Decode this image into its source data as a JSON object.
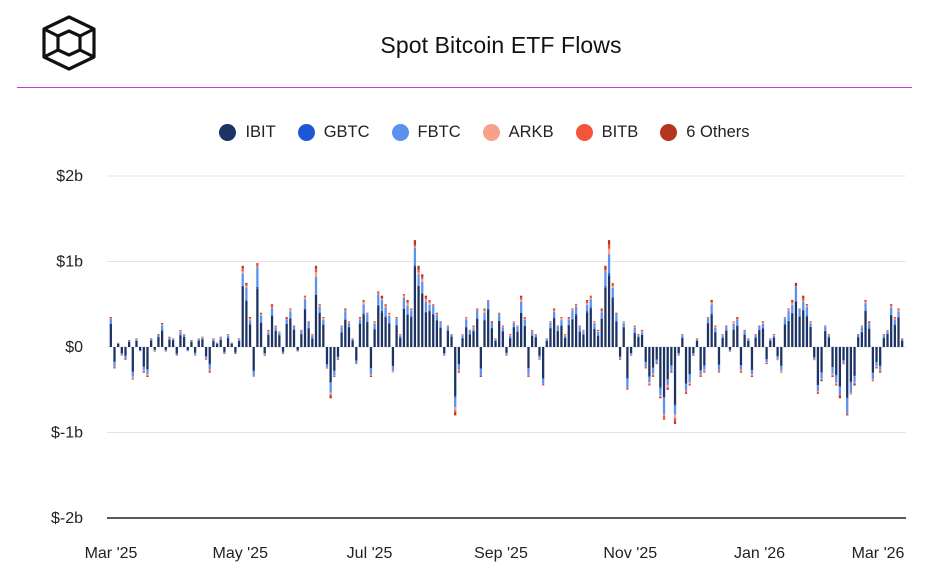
{
  "header": {
    "title": "Spot Bitcoin ETF Flows",
    "logo_icon": "cube-logo-icon",
    "accent_color": "#c13be0"
  },
  "legend": {
    "items": [
      {
        "label": "IBIT",
        "color": "#1c3363"
      },
      {
        "label": "GBTC",
        "color": "#1f56d6"
      },
      {
        "label": "FBTC",
        "color": "#5b92f0"
      },
      {
        "label": "ARKB",
        "color": "#f7a08a"
      },
      {
        "label": "BITB",
        "color": "#f4553a"
      },
      {
        "label": "6 Others",
        "color": "#b3361f"
      }
    ]
  },
  "chart_data": {
    "type": "bar",
    "stacked": true,
    "title": "Spot Bitcoin ETF Flows",
    "xlabel": "",
    "ylabel": "",
    "x_tick_labels": [
      "Mar '25",
      "May '25",
      "Jul '25",
      "Sep '25",
      "Nov '25",
      "Jan '26",
      "Mar '26"
    ],
    "y_tick_labels": [
      "$2b",
      "$1b",
      "$0",
      "$-1b",
      "$-2b"
    ],
    "y_tick_values": [
      2,
      1,
      0,
      -1,
      -2
    ],
    "ylim": [
      -2,
      2
    ],
    "units": "billion USD",
    "grid": true,
    "legend_position": "top",
    "series_order": [
      "IBIT",
      "GBTC",
      "FBTC",
      "ARKB",
      "BITB",
      "6 Others"
    ],
    "series_colors": [
      "#1c3363",
      "#1f56d6",
      "#5b92f0",
      "#f7a08a",
      "#f4553a",
      "#b3361f"
    ],
    "dates": [
      "2025-03-01",
      "2025-05-01",
      "2025-07-01",
      "2025-09-01",
      "2025-11-01",
      "2026-01-01",
      "2026-03-01",
      "2026-03-13"
    ],
    "daily_net_flows": [
      0.35,
      -0.25,
      0.05,
      -0.1,
      -0.15,
      0.08,
      -0.38,
      0.1,
      -0.05,
      -0.3,
      -0.35,
      0.1,
      -0.05,
      0.15,
      0.28,
      -0.05,
      0.12,
      0.1,
      -0.1,
      0.2,
      0.15,
      -0.05,
      0.08,
      -0.1,
      0.1,
      0.12,
      -0.15,
      -0.3,
      0.1,
      0.05,
      0.12,
      -0.08,
      0.15,
      0.05,
      -0.08,
      0.1,
      0.95,
      0.75,
      0.35,
      -0.35,
      0.98,
      0.4,
      -0.1,
      0.2,
      0.5,
      0.25,
      0.18,
      -0.08,
      0.35,
      0.45,
      0.25,
      -0.05,
      0.2,
      0.6,
      0.3,
      0.15,
      0.95,
      0.5,
      0.35,
      -0.25,
      -0.6,
      -0.35,
      -0.15,
      0.25,
      0.45,
      0.3,
      0.1,
      -0.2,
      0.35,
      0.55,
      0.4,
      -0.35,
      0.3,
      0.65,
      0.6,
      0.5,
      0.4,
      -0.3,
      0.35,
      0.15,
      0.62,
      0.55,
      0.45,
      1.25,
      0.95,
      0.85,
      0.6,
      0.55,
      0.5,
      0.4,
      0.3,
      -0.1,
      0.25,
      0.15,
      -0.8,
      -0.3,
      0.15,
      0.35,
      0.2,
      0.25,
      0.45,
      -0.35,
      0.45,
      0.55,
      0.3,
      0.1,
      0.4,
      0.25,
      -0.1,
      0.15,
      0.3,
      0.25,
      0.6,
      0.35,
      -0.35,
      0.2,
      0.15,
      -0.15,
      -0.45,
      0.1,
      0.3,
      0.45,
      0.25,
      0.35,
      0.15,
      0.35,
      0.45,
      0.5,
      0.25,
      0.2,
      0.55,
      0.6,
      0.3,
      0.2,
      0.45,
      0.95,
      1.25,
      0.75,
      0.4,
      -0.15,
      0.3,
      -0.5,
      -0.1,
      0.25,
      0.15,
      0.2,
      -0.25,
      -0.45,
      -0.35,
      -0.2,
      -0.6,
      -0.85,
      -0.5,
      -0.3,
      -0.9,
      -0.1,
      0.15,
      -0.55,
      -0.45,
      -0.1,
      0.1,
      -0.35,
      -0.3,
      0.35,
      0.55,
      0.25,
      -0.3,
      0.15,
      0.25,
      -0.05,
      0.3,
      0.35,
      -0.3,
      0.2,
      0.1,
      -0.35,
      0.15,
      0.25,
      0.3,
      -0.2,
      0.1,
      0.15,
      -0.15,
      -0.3,
      0.35,
      0.45,
      0.55,
      0.75,
      0.45,
      0.6,
      0.5,
      0.3,
      -0.15,
      -0.55,
      -0.4,
      0.25,
      0.15,
      -0.35,
      -0.45,
      -0.6,
      -0.2,
      -0.8,
      -0.55,
      -0.45,
      0.15,
      0.25,
      0.55,
      0.3,
      -0.4,
      -0.25,
      -0.3,
      0.15,
      0.2,
      0.5,
      0.35,
      0.45,
      0.1
    ]
  }
}
